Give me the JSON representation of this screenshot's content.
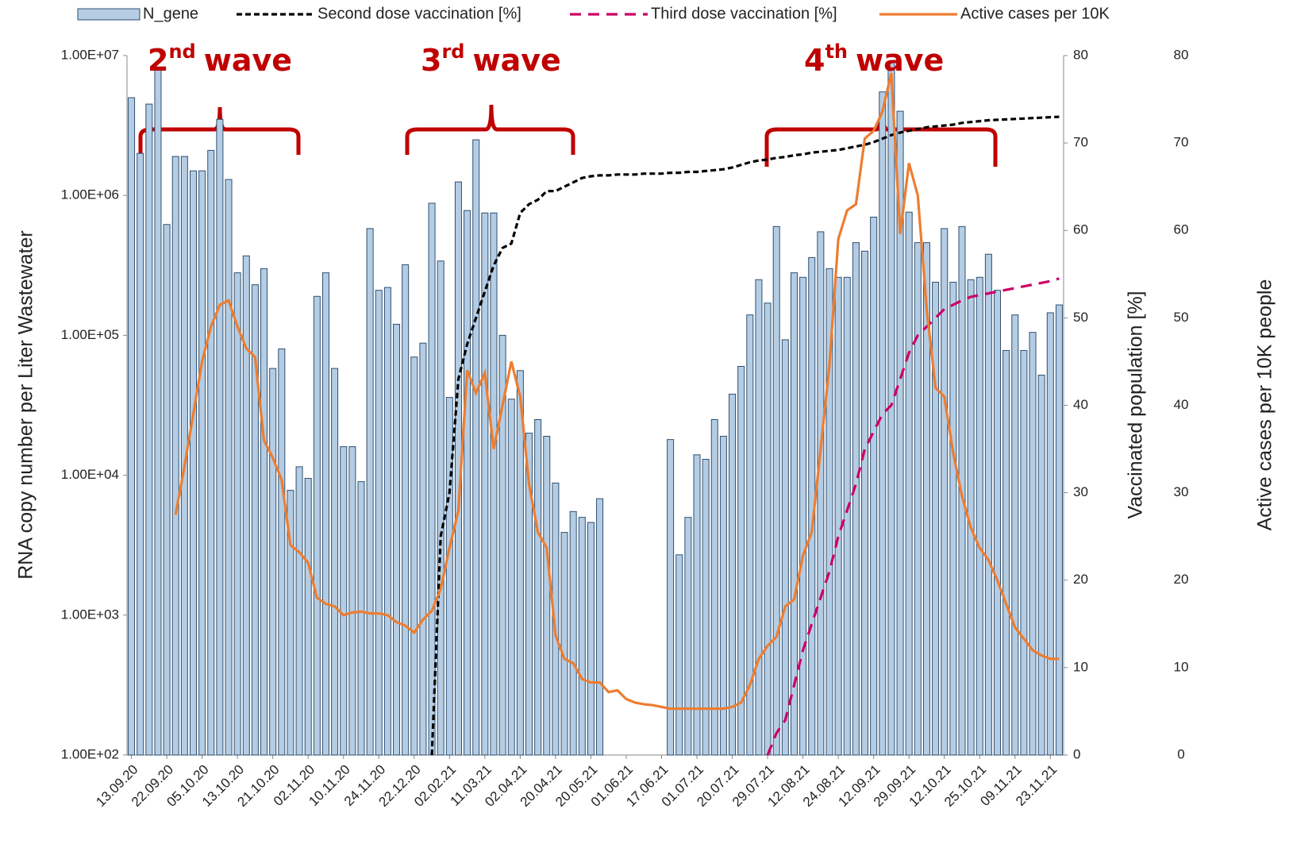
{
  "chart_data": {
    "type": "bar",
    "legend": "top",
    "y_label": "RNA copy number per Liter Wastewater",
    "y2_label": "Vaccinated population [%]",
    "y3_label": "Active cases per 10K people",
    "log_y": true,
    "ylim": [
      100,
      10000000
    ],
    "yticks": [
      {
        "value": 100,
        "label": "1.00E+02"
      },
      {
        "value": 1000,
        "label": "1.00E+03"
      },
      {
        "value": 10000,
        "label": "1.00E+04"
      },
      {
        "value": 100000,
        "label": "1.00E+05"
      },
      {
        "value": 1000000,
        "label": "1.00E+06"
      },
      {
        "value": 10000000,
        "label": "1.00E+07"
      }
    ],
    "y2lim": [
      0,
      80
    ],
    "y2ticks": [
      0,
      10,
      20,
      30,
      40,
      50,
      60,
      70,
      80
    ],
    "y3lim": [
      0,
      80
    ],
    "y3ticks": [
      0,
      10,
      20,
      30,
      40,
      50,
      60,
      70,
      80
    ],
    "annotations": [
      {
        "number": "2",
        "suffix": "nd",
        "label": "wave"
      },
      {
        "number": "3",
        "suffix": "rd",
        "label": "wave"
      },
      {
        "number": "4",
        "suffix": "th",
        "label": "wave"
      }
    ],
    "categories": [
      "13.09.20",
      null,
      null,
      null,
      "22.09.20",
      null,
      null,
      null,
      "05.10.20",
      null,
      null,
      null,
      "13.10.20",
      null,
      null,
      null,
      "21.10.20",
      null,
      null,
      null,
      "02.11.20",
      null,
      null,
      null,
      "10.11.20",
      null,
      null,
      null,
      "24.11.20",
      null,
      null,
      null,
      "22.12.20",
      null,
      null,
      null,
      "02.02.21",
      null,
      null,
      null,
      "11.03.21",
      null,
      null,
      null,
      "02.04.21",
      null,
      null,
      null,
      "20.04.21",
      null,
      null,
      null,
      "20.05.21",
      null,
      null,
      null,
      "01.06.21",
      null,
      null,
      null,
      "17.06.21",
      null,
      null,
      null,
      "01.07.21",
      null,
      null,
      null,
      "20.07.21",
      null,
      null,
      null,
      "29.07.21",
      null,
      null,
      null,
      "12.08.21",
      null,
      null,
      null,
      "24.08.21",
      null,
      null,
      null,
      "12.09.21",
      null,
      null,
      null,
      "29.09.21",
      null,
      null,
      null,
      "12.10.21",
      null,
      null,
      null,
      "25.10.21",
      null,
      null,
      null,
      "09.11.21",
      null,
      null,
      null,
      "23.11.21",
      null
    ],
    "series": [
      {
        "name": "N_gene",
        "kind": "bar",
        "color": "#b4cde4",
        "edge": "#2f4f6f",
        "values": [
          5000000,
          2000000,
          4500000,
          8000000,
          620000,
          1900000,
          1900000,
          1500000,
          1500000,
          2100000,
          3500000,
          1300000,
          280000,
          370000,
          230000,
          300000,
          58000,
          80000,
          7800,
          11500,
          9500,
          190000,
          280000,
          58000,
          16000,
          16000,
          9000,
          580000,
          210000,
          220000,
          120000,
          320000,
          70000,
          88000,
          880000,
          340000,
          36000,
          1250000,
          780000,
          2500000,
          750000,
          750000,
          100000,
          35000,
          56000,
          20000,
          25000,
          19000,
          8800,
          3900,
          5500,
          5000,
          4600,
          6800,
          null,
          null,
          null,
          null,
          null,
          null,
          null,
          18000,
          2700,
          5000,
          14000,
          13000,
          25000,
          19000,
          38000,
          60000,
          140000,
          250000,
          170000,
          600000,
          93000,
          280000,
          260000,
          360000,
          550000,
          300000,
          260000,
          260000,
          460000,
          400000,
          700000,
          5500000,
          9000000,
          4000000,
          760000,
          460000,
          460000,
          240000,
          580000,
          240000,
          600000,
          250000,
          260000,
          380000,
          210000,
          78000,
          140000,
          78000,
          105000,
          52000,
          145000,
          165000
        ]
      },
      {
        "name": "Second dose vaccination [%]",
        "kind": "line",
        "axis": "y2",
        "color": "#000000",
        "style": "dashed",
        "values": [
          null,
          null,
          null,
          null,
          null,
          null,
          null,
          null,
          null,
          null,
          null,
          null,
          null,
          null,
          null,
          null,
          null,
          null,
          null,
          null,
          null,
          null,
          null,
          null,
          null,
          null,
          null,
          null,
          null,
          null,
          null,
          null,
          null,
          null,
          0,
          25,
          30,
          43,
          47,
          50,
          53,
          56,
          58,
          58.5,
          62,
          63,
          63.5,
          64.5,
          64.5,
          65,
          65.5,
          66,
          66.2,
          66.3,
          66.3,
          66.4,
          66.4,
          66.4,
          66.5,
          66.5,
          66.5,
          66.6,
          66.6,
          66.7,
          66.7,
          66.8,
          66.9,
          67,
          67.2,
          67.5,
          67.8,
          68,
          68.1,
          68.3,
          68.4,
          68.6,
          68.7,
          68.9,
          69,
          69.1,
          69.2,
          69.4,
          69.6,
          69.8,
          70.1,
          70.5,
          70.9,
          71.2,
          71.4,
          71.6,
          71.8,
          71.9,
          72,
          72.1,
          72.3,
          72.4,
          72.5,
          72.6,
          72.65,
          72.7,
          72.75,
          72.8,
          72.85,
          72.9,
          72.95,
          73
        ]
      },
      {
        "name": "Third dose vaccination [%]",
        "kind": "line",
        "axis": "y2",
        "color": "#cc0066",
        "style": "longdash",
        "values": [
          null,
          null,
          null,
          null,
          null,
          null,
          null,
          null,
          null,
          null,
          null,
          null,
          null,
          null,
          null,
          null,
          null,
          null,
          null,
          null,
          null,
          null,
          null,
          null,
          null,
          null,
          null,
          null,
          null,
          null,
          null,
          null,
          null,
          null,
          null,
          null,
          null,
          null,
          null,
          null,
          null,
          null,
          null,
          null,
          null,
          null,
          null,
          null,
          null,
          null,
          null,
          null,
          null,
          null,
          null,
          null,
          null,
          null,
          null,
          null,
          null,
          null,
          null,
          null,
          null,
          null,
          null,
          null,
          null,
          null,
          null,
          null,
          0,
          2.5,
          4,
          8,
          12,
          15,
          18,
          21,
          25,
          28,
          31,
          35,
          37,
          39,
          40,
          43,
          46,
          48,
          49,
          50,
          51,
          51.5,
          52,
          52.4,
          52.6,
          52.8,
          53,
          53.2,
          53.4,
          53.6,
          53.8,
          54,
          54.2,
          54.5
        ]
      },
      {
        "name": "Active cases per 10K",
        "kind": "line",
        "axis": "y3",
        "color": "#ed7d31",
        "style": "solid",
        "values": [
          null,
          null,
          null,
          null,
          null,
          27.5,
          33,
          39,
          45,
          49,
          51.5,
          52,
          49,
          46.5,
          45.5,
          36,
          34,
          31.5,
          24,
          23.2,
          22,
          18,
          17.3,
          17,
          16,
          16.3,
          16.4,
          16.2,
          16.2,
          16,
          15.2,
          14.8,
          14,
          15.5,
          16.5,
          19,
          23.7,
          28,
          44,
          41.4,
          43.7,
          35,
          40,
          45,
          41,
          31,
          25.5,
          23.7,
          13.7,
          11,
          10.5,
          8.7,
          8.3,
          8.3,
          7.2,
          7.4,
          6.4,
          6,
          5.8,
          5.7,
          5.5,
          5.3,
          5.3,
          5.3,
          5.3,
          5.3,
          5.3,
          5.3,
          5.5,
          6,
          8,
          11,
          12.5,
          13.5,
          17,
          17.8,
          22.8,
          25.5,
          35,
          44.6,
          59,
          62.3,
          63,
          70.5,
          71.4,
          73.6,
          78,
          59.6,
          67.7,
          64,
          51,
          42,
          41,
          34.6,
          29.6,
          26,
          23.7,
          22.3,
          20,
          17.3,
          14.6,
          13.3,
          12,
          11.4,
          11,
          11
        ]
      }
    ]
  }
}
